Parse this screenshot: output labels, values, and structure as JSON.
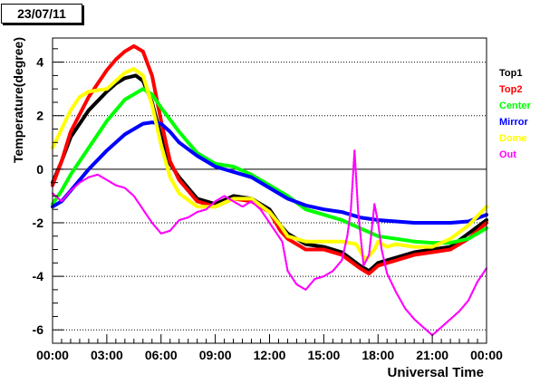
{
  "date_label": "23/07/11",
  "chart_data": {
    "type": "line",
    "title": "",
    "xlabel": "Universal Time",
    "ylabel": "Temperature(degree)",
    "xlim": [
      0,
      24
    ],
    "ylim": [
      -6.5,
      4.9
    ],
    "x_ticks": [
      {
        "v": 0,
        "label": "00:00"
      },
      {
        "v": 3,
        "label": "03:00"
      },
      {
        "v": 6,
        "label": "06:00"
      },
      {
        "v": 9,
        "label": "09:00"
      },
      {
        "v": 12,
        "label": "12:00"
      },
      {
        "v": 15,
        "label": "15:00"
      },
      {
        "v": 18,
        "label": "18:00"
      },
      {
        "v": 21,
        "label": "21:00"
      },
      {
        "v": 24,
        "label": "00:00"
      }
    ],
    "y_ticks": [
      -6,
      -4,
      -2,
      0,
      2,
      4
    ],
    "grid": "dotted-horizontal",
    "legend_position": "right",
    "series": [
      {
        "name": "Top1",
        "color": "#000000",
        "points": [
          [
            0,
            -0.5
          ],
          [
            0.5,
            0.3
          ],
          [
            1,
            1.2
          ],
          [
            2,
            2.2
          ],
          [
            3,
            2.9
          ],
          [
            3.5,
            3.2
          ],
          [
            4,
            3.4
          ],
          [
            4.6,
            3.5
          ],
          [
            5,
            3.3
          ],
          [
            5.5,
            2.5
          ],
          [
            6,
            1.2
          ],
          [
            6.5,
            0.2
          ],
          [
            7,
            -0.3
          ],
          [
            8,
            -1.1
          ],
          [
            9,
            -1.3
          ],
          [
            10,
            -1.0
          ],
          [
            11,
            -1.1
          ],
          [
            12,
            -1.5
          ],
          [
            12.6,
            -2.1
          ],
          [
            13,
            -2.4
          ],
          [
            14,
            -2.8
          ],
          [
            15,
            -2.9
          ],
          [
            16,
            -3.1
          ],
          [
            17,
            -3.6
          ],
          [
            17.5,
            -3.8
          ],
          [
            18,
            -3.5
          ],
          [
            19,
            -3.3
          ],
          [
            20,
            -3.1
          ],
          [
            21,
            -3.0
          ],
          [
            22,
            -2.9
          ],
          [
            23,
            -2.4
          ],
          [
            24,
            -1.9
          ]
        ]
      },
      {
        "name": "Top2",
        "color": "#ff0000",
        "points": [
          [
            0,
            -0.6
          ],
          [
            0.5,
            0.3
          ],
          [
            1,
            1.4
          ],
          [
            2,
            2.7
          ],
          [
            3,
            3.7
          ],
          [
            3.5,
            4.1
          ],
          [
            4,
            4.4
          ],
          [
            4.5,
            4.6
          ],
          [
            5,
            4.4
          ],
          [
            5.5,
            3.5
          ],
          [
            6,
            1.8
          ],
          [
            6.5,
            0.3
          ],
          [
            7,
            -0.4
          ],
          [
            8,
            -1.2
          ],
          [
            9,
            -1.4
          ],
          [
            10,
            -1.1
          ],
          [
            11,
            -1.2
          ],
          [
            12,
            -1.6
          ],
          [
            12.6,
            -2.3
          ],
          [
            13,
            -2.6
          ],
          [
            14,
            -3.0
          ],
          [
            15,
            -3.0
          ],
          [
            16,
            -3.2
          ],
          [
            17,
            -3.7
          ],
          [
            17.5,
            -3.9
          ],
          [
            18,
            -3.6
          ],
          [
            19,
            -3.4
          ],
          [
            20,
            -3.2
          ],
          [
            21,
            -3.1
          ],
          [
            22,
            -3.0
          ],
          [
            23,
            -2.6
          ],
          [
            24,
            -2.0
          ]
        ]
      },
      {
        "name": "Center",
        "color": "#00ff00",
        "points": [
          [
            0,
            -1.3
          ],
          [
            0.5,
            -0.8
          ],
          [
            1,
            -0.2
          ],
          [
            2,
            0.8
          ],
          [
            3,
            1.8
          ],
          [
            4,
            2.6
          ],
          [
            5,
            3.0
          ],
          [
            5.5,
            2.8
          ],
          [
            6,
            2.3
          ],
          [
            7,
            1.4
          ],
          [
            8,
            0.6
          ],
          [
            9,
            0.2
          ],
          [
            10,
            0.1
          ],
          [
            11,
            -0.2
          ],
          [
            12,
            -0.6
          ],
          [
            13,
            -1.0
          ],
          [
            14,
            -1.5
          ],
          [
            15,
            -1.7
          ],
          [
            16,
            -1.9
          ],
          [
            17,
            -2.2
          ],
          [
            18,
            -2.5
          ],
          [
            19,
            -2.6
          ],
          [
            20,
            -2.7
          ],
          [
            21,
            -2.75
          ],
          [
            22,
            -2.75
          ],
          [
            23,
            -2.6
          ],
          [
            24,
            -2.2
          ]
        ]
      },
      {
        "name": "Mirror",
        "color": "#0000ff",
        "points": [
          [
            0,
            -1.4
          ],
          [
            0.5,
            -1.2
          ],
          [
            1,
            -0.8
          ],
          [
            2,
            0.0
          ],
          [
            3,
            0.7
          ],
          [
            4,
            1.3
          ],
          [
            5,
            1.7
          ],
          [
            5.5,
            1.75
          ],
          [
            6,
            1.7
          ],
          [
            6.5,
            1.4
          ],
          [
            7,
            1.0
          ],
          [
            8,
            0.5
          ],
          [
            9,
            0.1
          ],
          [
            10,
            -0.1
          ],
          [
            11,
            -0.3
          ],
          [
            12,
            -0.7
          ],
          [
            13,
            -1.1
          ],
          [
            14,
            -1.35
          ],
          [
            15,
            -1.5
          ],
          [
            16,
            -1.6
          ],
          [
            17,
            -1.8
          ],
          [
            18,
            -1.9
          ],
          [
            19,
            -1.95
          ],
          [
            20,
            -2.0
          ],
          [
            21,
            -2.0
          ],
          [
            22,
            -2.0
          ],
          [
            23,
            -1.95
          ],
          [
            24,
            -1.7
          ]
        ]
      },
      {
        "name": "Dome",
        "color": "#ffff00",
        "points": [
          [
            0,
            0.8
          ],
          [
            0.5,
            1.5
          ],
          [
            1,
            2.2
          ],
          [
            1.5,
            2.7
          ],
          [
            2,
            2.9
          ],
          [
            3,
            3.0
          ],
          [
            3.5,
            3.3
          ],
          [
            4,
            3.6
          ],
          [
            4.5,
            3.75
          ],
          [
            5,
            3.5
          ],
          [
            5.5,
            2.4
          ],
          [
            6,
            0.9
          ],
          [
            6.5,
            -0.3
          ],
          [
            7,
            -0.9
          ],
          [
            8,
            -1.4
          ],
          [
            9,
            -1.4
          ],
          [
            10,
            -1.1
          ],
          [
            11,
            -1.1
          ],
          [
            12,
            -1.6
          ],
          [
            12.6,
            -2.1
          ],
          [
            13,
            -2.5
          ],
          [
            14,
            -2.7
          ],
          [
            15,
            -2.7
          ],
          [
            16,
            -2.7
          ],
          [
            16.8,
            -2.8
          ],
          [
            17.3,
            -3.4
          ],
          [
            17.8,
            -3.0
          ],
          [
            18,
            -2.7
          ],
          [
            18.5,
            -2.9
          ],
          [
            19,
            -2.8
          ],
          [
            20,
            -2.9
          ],
          [
            21,
            -2.9
          ],
          [
            22,
            -2.6
          ],
          [
            23,
            -2.1
          ],
          [
            24,
            -1.4
          ]
        ]
      },
      {
        "name": "Out",
        "color": "#ff00ff",
        "points": [
          [
            0,
            -0.9
          ],
          [
            0.5,
            -1.2
          ],
          [
            1,
            -0.8
          ],
          [
            1.5,
            -0.5
          ],
          [
            2,
            -0.3
          ],
          [
            2.5,
            -0.2
          ],
          [
            3,
            -0.4
          ],
          [
            3.5,
            -0.6
          ],
          [
            4,
            -0.7
          ],
          [
            4.5,
            -1.0
          ],
          [
            5,
            -1.5
          ],
          [
            5.5,
            -2.0
          ],
          [
            6,
            -2.4
          ],
          [
            6.5,
            -2.3
          ],
          [
            7,
            -1.9
          ],
          [
            7.5,
            -1.8
          ],
          [
            8,
            -1.6
          ],
          [
            8.5,
            -1.5
          ],
          [
            9,
            -1.2
          ],
          [
            9.5,
            -1.0
          ],
          [
            10,
            -1.2
          ],
          [
            10.5,
            -1.4
          ],
          [
            11,
            -1.2
          ],
          [
            11.5,
            -1.5
          ],
          [
            12,
            -2.0
          ],
          [
            12.5,
            -2.5
          ],
          [
            12.7,
            -2.7
          ],
          [
            13,
            -3.8
          ],
          [
            13.5,
            -4.3
          ],
          [
            14,
            -4.5
          ],
          [
            14.5,
            -4.1
          ],
          [
            15,
            -4.0
          ],
          [
            15.5,
            -3.8
          ],
          [
            16,
            -3.4
          ],
          [
            16.3,
            -2.5
          ],
          [
            16.5,
            -1.5
          ],
          [
            16.7,
            0.7
          ],
          [
            16.9,
            -1.6
          ],
          [
            17.2,
            -3.6
          ],
          [
            17.5,
            -3.2
          ],
          [
            17.8,
            -1.3
          ],
          [
            18,
            -2.0
          ],
          [
            18.2,
            -3.0
          ],
          [
            18.5,
            -3.9
          ],
          [
            19,
            -4.6
          ],
          [
            19.5,
            -5.2
          ],
          [
            20,
            -5.6
          ],
          [
            20.5,
            -5.9
          ],
          [
            21,
            -6.2
          ],
          [
            21.5,
            -5.9
          ],
          [
            22,
            -5.6
          ],
          [
            22.5,
            -5.3
          ],
          [
            23,
            -4.9
          ],
          [
            23.5,
            -4.2
          ],
          [
            24,
            -3.7
          ]
        ]
      }
    ]
  }
}
